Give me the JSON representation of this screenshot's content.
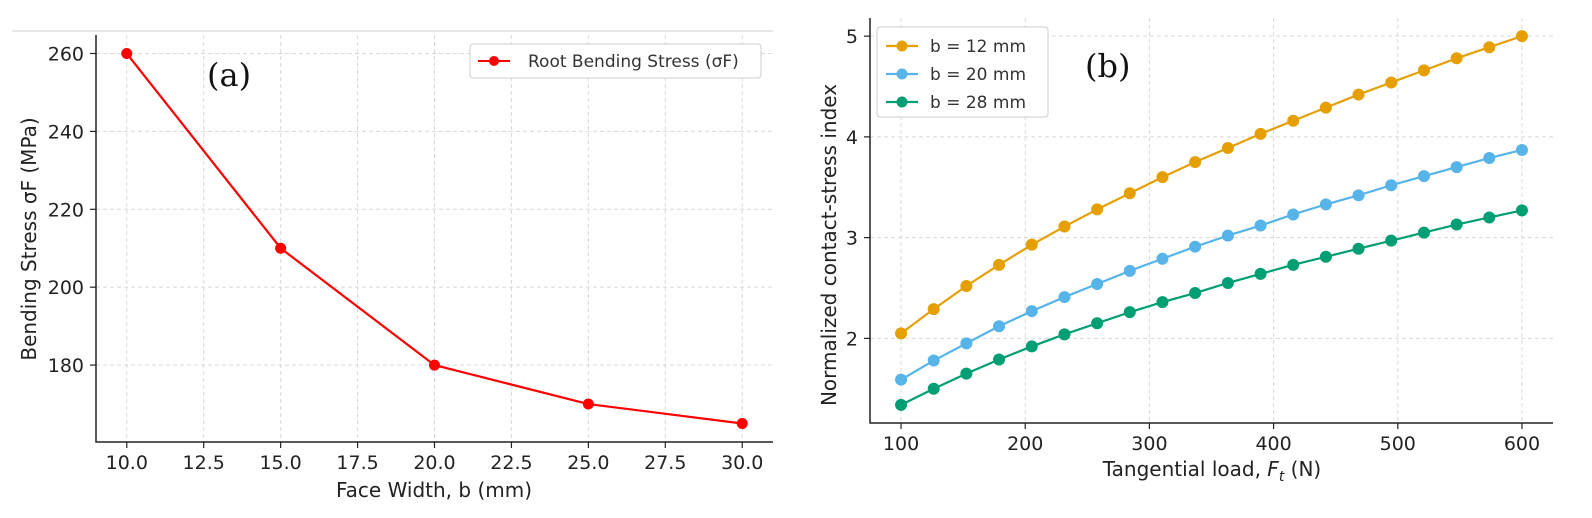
{
  "chart_data": [
    {
      "type": "line",
      "panel_label": "(a)",
      "xlabel": "Face Width, b (mm)",
      "ylabel": "Bending Stress σF (MPa)",
      "x": [
        10.0,
        15.0,
        20.0,
        25.0,
        30.0
      ],
      "series": [
        {
          "name": "Root Bending Stress (σF)",
          "color": "#ff0000",
          "values": [
            260,
            210,
            180,
            170,
            165
          ]
        }
      ],
      "xticks": [
        "10.0",
        "12.5",
        "15.0",
        "17.5",
        "20.0",
        "22.5",
        "25.0",
        "27.5",
        "30.0"
      ],
      "xtick_values": [
        10.0,
        12.5,
        15.0,
        17.5,
        20.0,
        22.5,
        25.0,
        27.5,
        30.0
      ],
      "yticks": [
        "180",
        "200",
        "220",
        "240",
        "260"
      ],
      "ytick_values": [
        180,
        200,
        220,
        240,
        260
      ],
      "xlim": [
        9.0,
        31.0
      ],
      "ylim": [
        160.25,
        264.75
      ],
      "legend_position": "top-right",
      "grid": true
    },
    {
      "type": "line",
      "panel_label": "(b)",
      "xlabel_main": "Tangential load, ",
      "xlabel_var": "F",
      "xlabel_sub": "t",
      "xlabel_unit": " (N)",
      "ylabel": "Normalized contact-stress index",
      "x": [
        100,
        126.3,
        152.6,
        178.9,
        205.3,
        231.6,
        257.9,
        284.2,
        310.5,
        336.8,
        363.2,
        389.5,
        415.8,
        442.1,
        468.4,
        494.7,
        521.1,
        547.4,
        573.7,
        600
      ],
      "series": [
        {
          "name": "b = 12 mm",
          "color": "#e69f00",
          "values": [
            2.05,
            2.29,
            2.52,
            2.73,
            2.93,
            3.11,
            3.28,
            3.44,
            3.6,
            3.75,
            3.89,
            4.03,
            4.16,
            4.29,
            4.42,
            4.54,
            4.66,
            4.78,
            4.89,
            5.0
          ]
        },
        {
          "name": "b = 20 mm",
          "color": "#56b4e9",
          "values": [
            1.59,
            1.78,
            1.95,
            2.12,
            2.27,
            2.41,
            2.54,
            2.67,
            2.79,
            2.91,
            3.02,
            3.12,
            3.23,
            3.33,
            3.42,
            3.52,
            3.61,
            3.7,
            3.79,
            3.87
          ]
        },
        {
          "name": "b = 28 mm",
          "color": "#009e73",
          "values": [
            1.34,
            1.5,
            1.65,
            1.79,
            1.92,
            2.04,
            2.15,
            2.26,
            2.36,
            2.45,
            2.55,
            2.64,
            2.73,
            2.81,
            2.89,
            2.97,
            3.05,
            3.13,
            3.2,
            3.27
          ]
        }
      ],
      "xticks": [
        "100",
        "200",
        "300",
        "400",
        "500",
        "600"
      ],
      "xtick_values": [
        100,
        200,
        300,
        400,
        500,
        600
      ],
      "yticks": [
        "2",
        "3",
        "4",
        "5"
      ],
      "ytick_values": [
        2,
        3,
        4,
        5
      ],
      "xlim": [
        75,
        625
      ],
      "ylim": [
        1.16,
        5.18
      ],
      "legend_position": "top-left",
      "grid": true
    }
  ]
}
